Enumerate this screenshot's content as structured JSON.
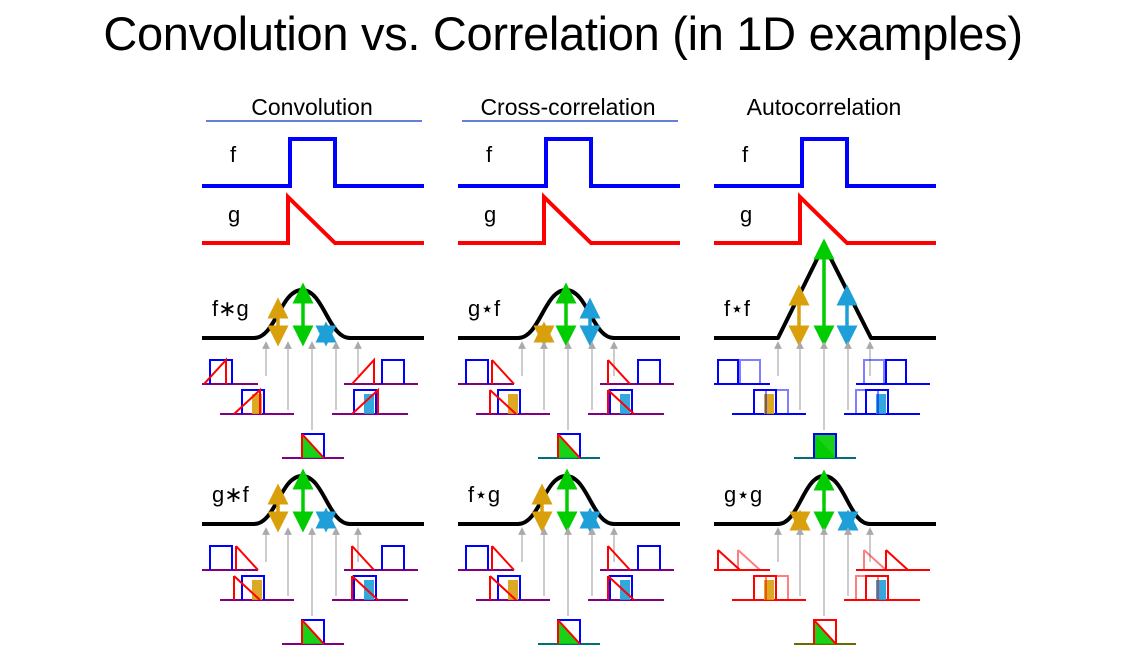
{
  "title": "Convolution vs. Correlation (in 1D examples)",
  "columns": [
    {
      "header": "Convolution",
      "header_underline": true,
      "f_label": "f",
      "g_label": "g",
      "row1_label": "f∗g",
      "row2_label": "g∗f"
    },
    {
      "header": "Cross-correlation",
      "header_underline": true,
      "f_label": "f",
      "g_label": "g",
      "row1_label": "g⋆f",
      "row2_label": "f⋆g"
    },
    {
      "header": "Autocorrelation",
      "header_underline": false,
      "f_label": "f",
      "g_label": "g",
      "row1_label": "f⋆f",
      "row2_label": "g⋆g"
    }
  ],
  "colors": {
    "f_signal": "#0000ff",
    "g_signal": "#ff0000",
    "result_curve": "#000000",
    "arrow_orange": "#d9a00b",
    "arrow_green": "#00cc00",
    "arrow_blue": "#1e9fd8",
    "baseline_purple": "#800080",
    "baseline_teal": "#006f7a",
    "baseline_olive": "#6b6b00",
    "guide_gray": "#b0b0b0",
    "header_underline": "#3355cc"
  }
}
